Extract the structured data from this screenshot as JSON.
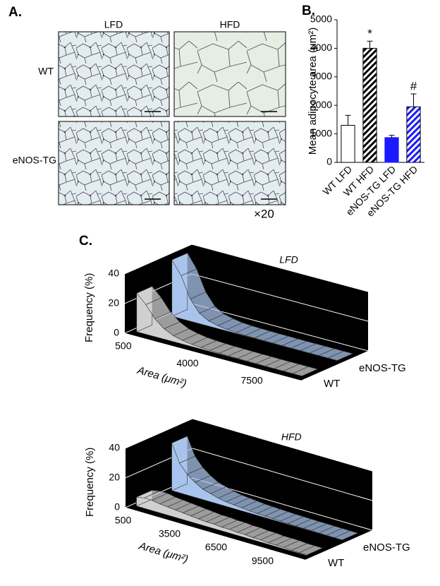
{
  "figure": {
    "panel_a": {
      "label": "A.",
      "columns": [
        "LFD",
        "HFD"
      ],
      "rows": [
        "WT",
        "eNOS-TG"
      ],
      "magnification": "×20"
    },
    "panel_b_label": "B.",
    "panel_c_label": "C."
  },
  "chart_data": [
    {
      "type": "bar",
      "ylabel": "Mean adipocyte area (μm²)",
      "categories": [
        "WT LFD",
        "WT HFD",
        "eNOS-TG LFD",
        "eNOS-TG HFD"
      ],
      "values": [
        1300,
        4000,
        870,
        1950
      ],
      "errors": [
        350,
        250,
        80,
        450
      ],
      "colors": [
        "#ffffff",
        "#000000",
        "#1a1aff",
        "#1a1aff"
      ],
      "hatch": [
        false,
        true,
        false,
        true
      ],
      "annotations": [
        null,
        "*",
        null,
        "#"
      ],
      "ylim": [
        0,
        5000
      ],
      "yticks": [
        0,
        1000,
        2000,
        3000,
        4000,
        5000
      ]
    },
    {
      "type": "ribbon3d",
      "title": "LFD",
      "ylabel": "Frequency (%)",
      "xlabel": "Area (μm²)",
      "x": [
        500,
        1000,
        1500,
        2000,
        2500,
        3000,
        3500,
        4000,
        4500,
        5000,
        5500,
        6000,
        6500,
        7000,
        7500,
        8000,
        8500,
        9000,
        9500
      ],
      "xlim": [
        200,
        9800
      ],
      "xticks": [
        500,
        4000,
        7500
      ],
      "ylim": [
        0,
        40
      ],
      "yticks": [
        0,
        20,
        40
      ],
      "series": [
        {
          "name": "WT",
          "color": "#d0d0d0",
          "values": [
            26,
            20,
            12,
            7,
            4,
            2.5,
            1.5,
            1,
            0.7,
            0.5,
            0.4,
            0.3,
            0.2,
            0.2,
            0.1,
            0.1,
            0.1,
            0.1,
            0.1
          ]
        },
        {
          "name": "eNOS-TG",
          "color": "#a9c4ec",
          "values": [
            38,
            29,
            15,
            7,
            3.5,
            2,
            1,
            0.6,
            0.4,
            0.3,
            0.2,
            0.2,
            0.1,
            0.1,
            0.1,
            0.1,
            0.1,
            0.1,
            0.1
          ]
        }
      ]
    },
    {
      "type": "ribbon3d",
      "title": "HFD",
      "ylabel": "Frequency (%)",
      "xlabel": "Area (μm²)",
      "x": [
        500,
        1000,
        1500,
        2000,
        2500,
        3000,
        3500,
        4000,
        4500,
        5000,
        5500,
        6000,
        6500,
        7000,
        7500,
        8000,
        8500,
        9000,
        9500,
        10000,
        10500,
        11000,
        11500
      ],
      "xlim": [
        200,
        11800
      ],
      "xticks": [
        500,
        3500,
        6500,
        9500
      ],
      "ylim": [
        0,
        40
      ],
      "yticks": [
        0,
        20,
        40
      ],
      "series": [
        {
          "name": "WT",
          "color": "#d0d0d0",
          "values": [
            6,
            7,
            7,
            6,
            5.5,
            5,
            4.5,
            4,
            3.5,
            3,
            3,
            2.5,
            2.5,
            2,
            2,
            1.5,
            1.5,
            1,
            1,
            1,
            0.5,
            0.5,
            0.5
          ]
        },
        {
          "name": "eNOS-TG",
          "color": "#a9c4ec",
          "values": [
            32,
            20,
            14,
            10,
            7,
            5.5,
            4,
            3,
            2.5,
            2,
            1.5,
            1.2,
            1,
            0.8,
            0.6,
            0.5,
            0.4,
            0.3,
            0.3,
            0.2,
            0.2,
            0.1,
            0.1
          ]
        }
      ]
    }
  ]
}
